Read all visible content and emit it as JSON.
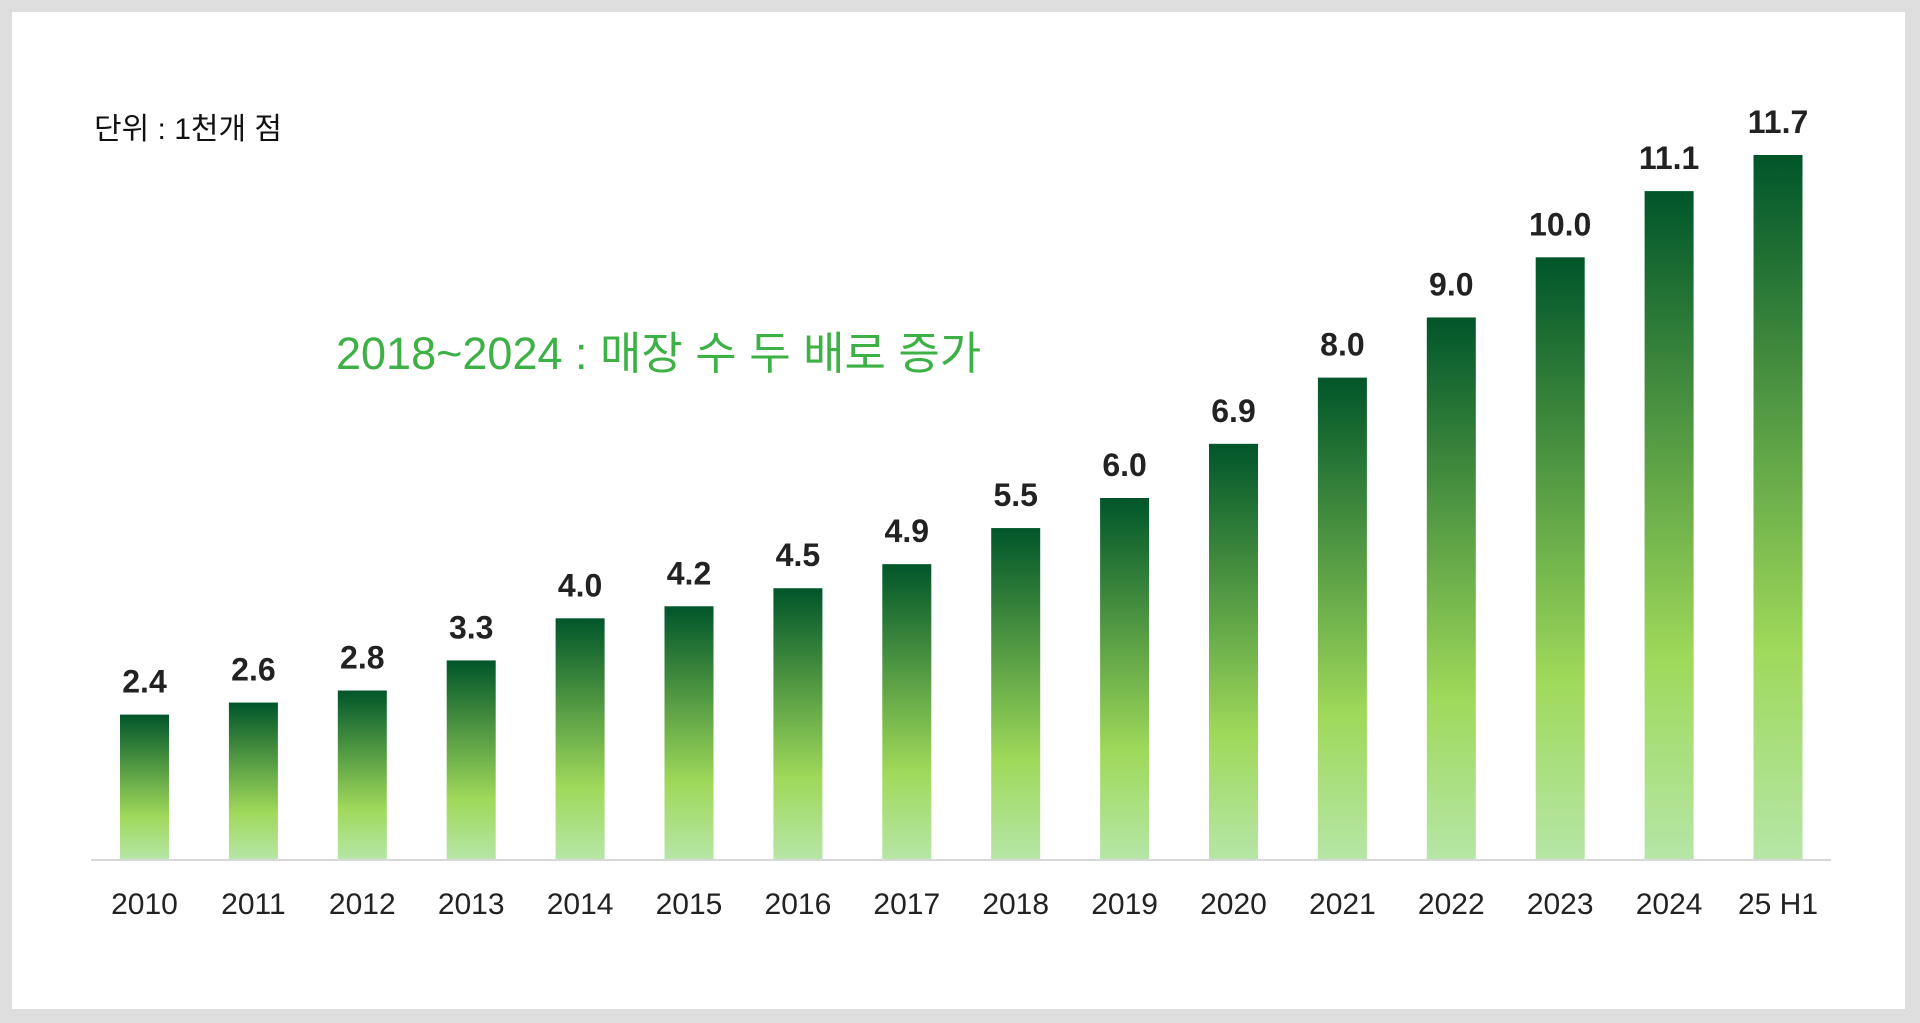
{
  "chart_data": {
    "type": "bar",
    "title": "",
    "unit_label": "단위 : 1천개 점",
    "annotation": "2018~2024 :  매장 수 두 배로 증가",
    "categories": [
      "2010",
      "2011",
      "2012",
      "2013",
      "2014",
      "2015",
      "2016",
      "2017",
      "2018",
      "2019",
      "2020",
      "2021",
      "2022",
      "2023",
      "2024",
      "25 H1"
    ],
    "values": [
      2.4,
      2.6,
      2.8,
      3.3,
      4.0,
      4.2,
      4.5,
      4.9,
      5.5,
      6.0,
      6.9,
      8.0,
      9.0,
      10.0,
      11.1,
      11.7
    ],
    "value_labels": [
      "2.4",
      "2.6",
      "2.8",
      "3.3",
      "4.0",
      "4.2",
      "4.5",
      "4.9",
      "5.5",
      "6.0",
      "6.9",
      "8.0",
      "9.0",
      "10.0",
      "11.1",
      "11.7"
    ],
    "xlabel": "",
    "ylabel": "",
    "ylim": [
      0,
      11.7
    ],
    "grid": false,
    "colors": {
      "bar_top": "#00552a",
      "bar_mid": "#9fd95a",
      "bar_bottom": "#b6e6a6",
      "annotation": "#3db145"
    }
  }
}
